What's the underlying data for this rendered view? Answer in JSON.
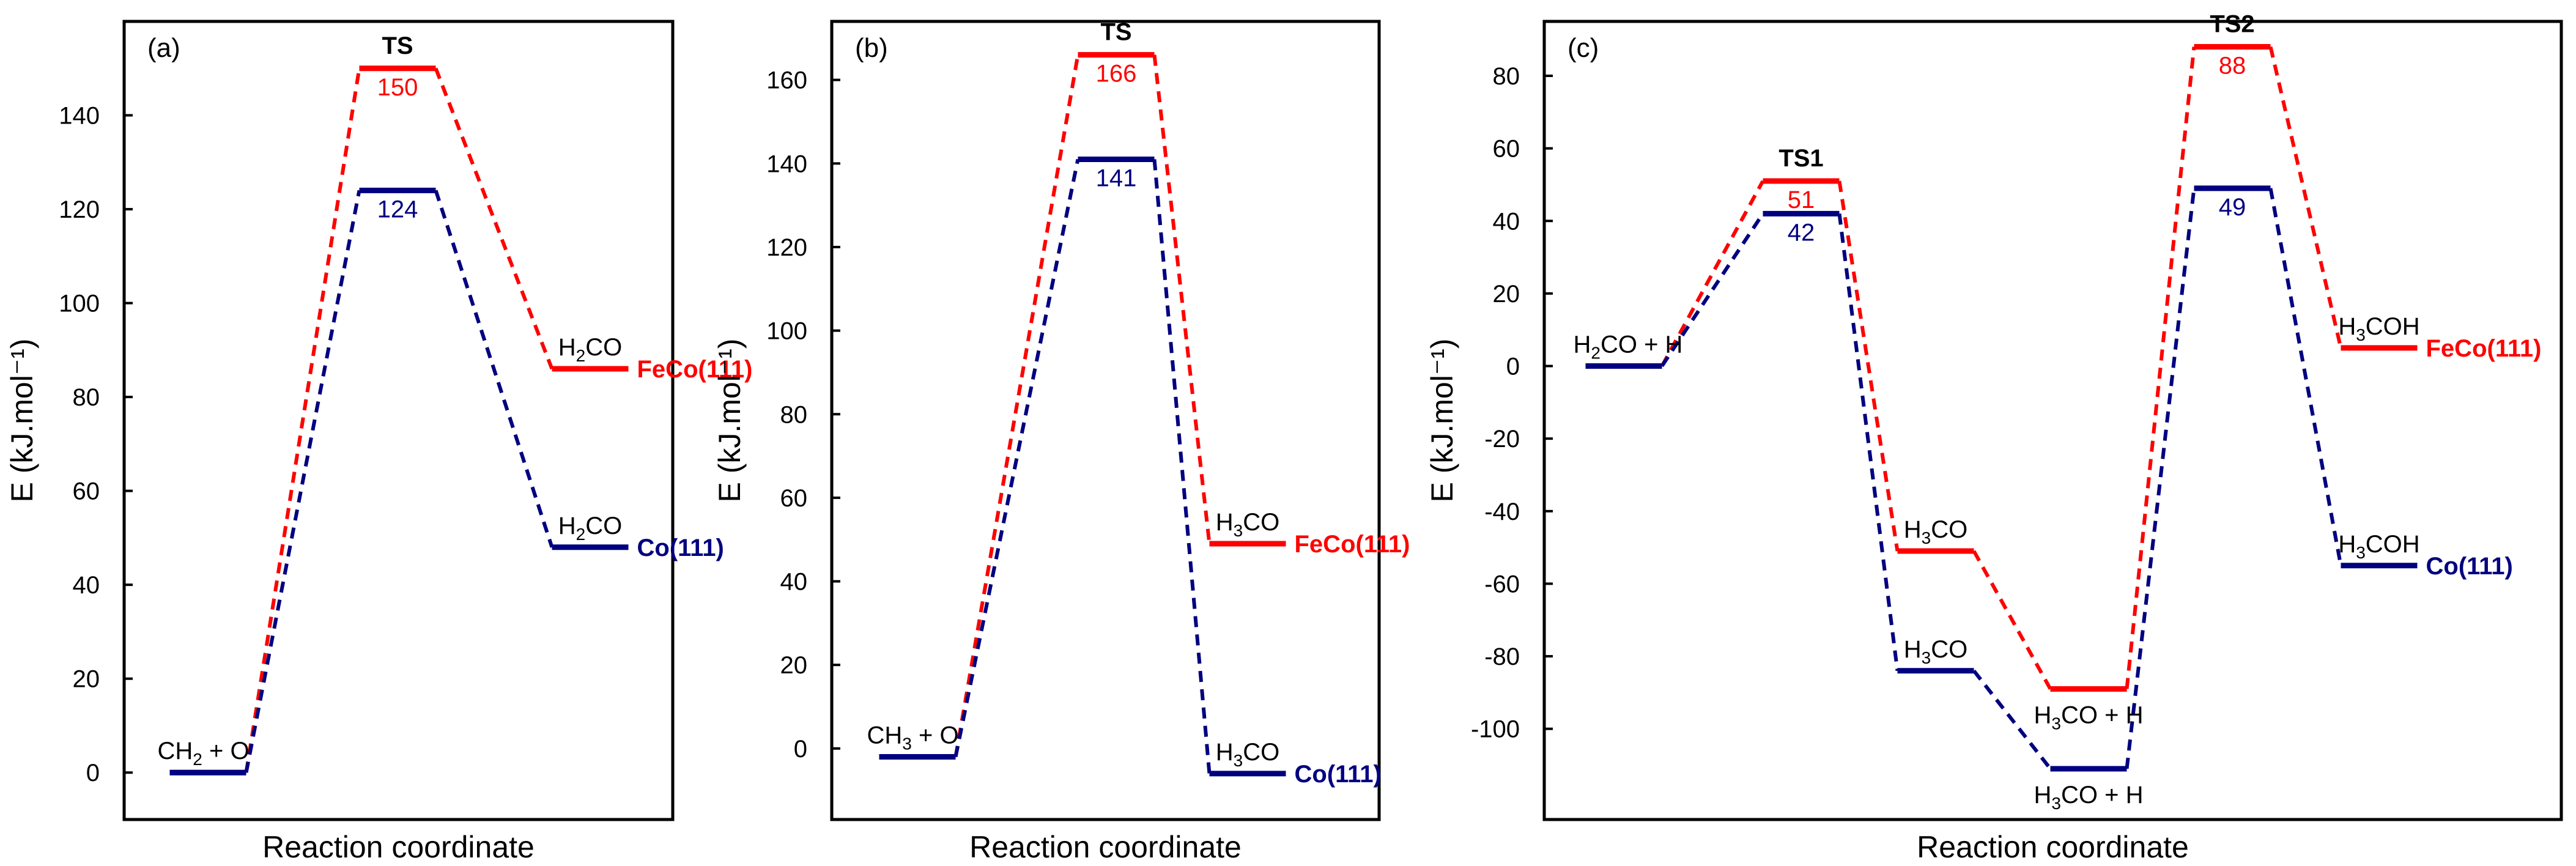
{
  "figure": {
    "colors": {
      "red": "#ff0000",
      "blue": "#000080",
      "axis": "#000000"
    }
  },
  "chart_data": [
    {
      "panel": "(a)",
      "type": "line",
      "ylabel": "E (kJ.mol⁻¹)",
      "xlabel": "Reaction coordinate",
      "ylim": [
        -10,
        160
      ],
      "yticks": [
        0,
        20,
        40,
        60,
        80,
        100,
        120,
        140
      ],
      "ts_labels": [
        {
          "text": "TS",
          "step": 1
        }
      ],
      "series": [
        {
          "name": "FeCo(111)",
          "color": "#ff0000",
          "levels": [
            {
              "step": 0,
              "value": 0
            },
            {
              "step": 1,
              "value": 150,
              "label": "150"
            },
            {
              "step": 2,
              "value": 86
            }
          ],
          "end_label": "FeCo(111)"
        },
        {
          "name": "Co(111)",
          "color": "#000080",
          "levels": [
            {
              "step": 0,
              "value": 0
            },
            {
              "step": 1,
              "value": 124,
              "label": "124"
            },
            {
              "step": 2,
              "value": 48
            }
          ],
          "end_label": "Co(111)"
        }
      ],
      "species": [
        {
          "step": 0,
          "value": 0,
          "parts": [
            [
              "CH",
              ""
            ],
            [
              "2",
              "sub"
            ],
            [
              " + O",
              ""
            ]
          ],
          "pos": "above"
        },
        {
          "step": 2,
          "value": 86,
          "parts": [
            [
              "H",
              ""
            ],
            [
              "2",
              "sub"
            ],
            [
              "CO",
              ""
            ]
          ],
          "pos": "above"
        },
        {
          "step": 2,
          "value": 48,
          "parts": [
            [
              "H",
              ""
            ],
            [
              "2",
              "sub"
            ],
            [
              "CO",
              ""
            ]
          ],
          "pos": "above"
        }
      ]
    },
    {
      "panel": "(b)",
      "type": "line",
      "ylabel": "E (kJ.mol⁻¹)",
      "xlabel": "Reaction coordinate",
      "ylim": [
        -17,
        174
      ],
      "yticks": [
        0,
        20,
        40,
        60,
        80,
        100,
        120,
        140,
        160
      ],
      "ts_labels": [
        {
          "text": "TS",
          "step": 1
        }
      ],
      "series": [
        {
          "name": "FeCo(111)",
          "color": "#ff0000",
          "levels": [
            {
              "step": 0,
              "value": -2
            },
            {
              "step": 1,
              "value": 166,
              "label": "166"
            },
            {
              "step": 2,
              "value": 49
            }
          ],
          "end_label": "FeCo(111)"
        },
        {
          "name": "Co(111)",
          "color": "#000080",
          "levels": [
            {
              "step": 0,
              "value": -2
            },
            {
              "step": 1,
              "value": 141,
              "label": "141"
            },
            {
              "step": 2,
              "value": -6
            }
          ],
          "end_label": "Co(111)"
        }
      ],
      "species": [
        {
          "step": 0,
          "value": -2,
          "parts": [
            [
              "CH",
              ""
            ],
            [
              "3",
              "sub"
            ],
            [
              " + O",
              ""
            ]
          ],
          "pos": "above"
        },
        {
          "step": 2,
          "value": 49,
          "parts": [
            [
              "H",
              ""
            ],
            [
              "3",
              "sub"
            ],
            [
              "CO",
              ""
            ]
          ],
          "pos": "above"
        },
        {
          "step": 2,
          "value": -6,
          "parts": [
            [
              "H",
              ""
            ],
            [
              "3",
              "sub"
            ],
            [
              "CO",
              ""
            ]
          ],
          "pos": "above"
        }
      ]
    },
    {
      "panel": "(c)",
      "type": "line",
      "ylabel": "E (kJ.mol⁻¹)",
      "xlabel": "Reaction coordinate",
      "ylim": [
        -125,
        95
      ],
      "yticks": [
        -100,
        -80,
        -60,
        -40,
        -20,
        0,
        20,
        40,
        60,
        80
      ],
      "ts_labels": [
        {
          "text": "TS1",
          "step": 1
        },
        {
          "text": "TS2",
          "step": 4
        }
      ],
      "series": [
        {
          "name": "FeCo(111)",
          "color": "#ff0000",
          "levels": [
            {
              "step": 0,
              "value": 0
            },
            {
              "step": 1,
              "value": 51,
              "label": "51"
            },
            {
              "step": 2,
              "value": -51
            },
            {
              "step": 3,
              "value": -89
            },
            {
              "step": 4,
              "value": 88,
              "label": "88"
            },
            {
              "step": 5,
              "value": 5
            }
          ],
          "end_label": "FeCo(111)"
        },
        {
          "name": "Co(111)",
          "color": "#000080",
          "levels": [
            {
              "step": 0,
              "value": 0
            },
            {
              "step": 1,
              "value": 42,
              "label": "42"
            },
            {
              "step": 2,
              "value": -84
            },
            {
              "step": 3,
              "value": -111
            },
            {
              "step": 4,
              "value": 49,
              "label": "49"
            },
            {
              "step": 5,
              "value": -55
            }
          ],
          "end_label": "Co(111)"
        }
      ],
      "species": [
        {
          "step": 0,
          "value": 0,
          "parts": [
            [
              "H",
              ""
            ],
            [
              "2",
              "sub"
            ],
            [
              "CO + H",
              ""
            ]
          ],
          "pos": "above"
        },
        {
          "step": 2,
          "value": -51,
          "parts": [
            [
              "H",
              ""
            ],
            [
              "3",
              "sub"
            ],
            [
              "CO",
              ""
            ]
          ],
          "pos": "above"
        },
        {
          "step": 2,
          "value": -84,
          "parts": [
            [
              "H",
              ""
            ],
            [
              "3",
              "sub"
            ],
            [
              "CO",
              ""
            ]
          ],
          "pos": "above"
        },
        {
          "step": 3,
          "value": -89,
          "parts": [
            [
              "H",
              ""
            ],
            [
              "3",
              "sub"
            ],
            [
              "CO + H",
              ""
            ]
          ],
          "pos": "below"
        },
        {
          "step": 3,
          "value": -111,
          "parts": [
            [
              "H",
              ""
            ],
            [
              "3",
              "sub"
            ],
            [
              "CO + H",
              ""
            ]
          ],
          "pos": "below"
        },
        {
          "step": 5,
          "value": 5,
          "parts": [
            [
              "H",
              ""
            ],
            [
              "3",
              "sub"
            ],
            [
              "COH",
              ""
            ]
          ],
          "pos": "above"
        },
        {
          "step": 5,
          "value": -55,
          "parts": [
            [
              "H",
              ""
            ],
            [
              "3",
              "sub"
            ],
            [
              "COH",
              ""
            ]
          ],
          "pos": "above"
        }
      ]
    }
  ]
}
